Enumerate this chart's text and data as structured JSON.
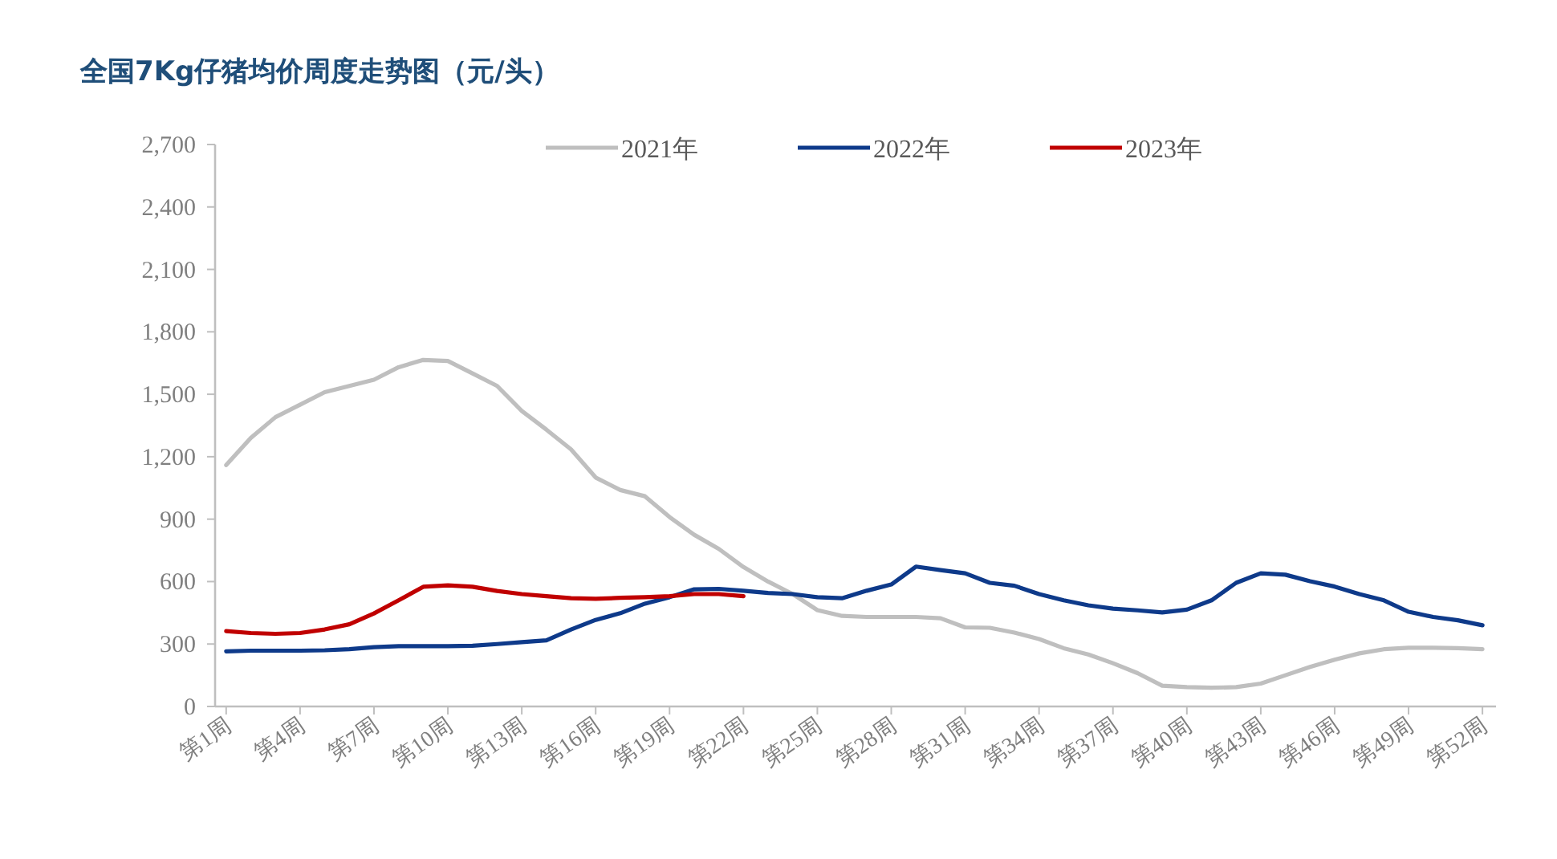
{
  "chart_data": {
    "type": "line",
    "title": "全国7Kg仔猪均价周度走势图（元/头）",
    "categories": [
      "第1周",
      null,
      null,
      "第4周",
      null,
      null,
      "第7周",
      null,
      null,
      "第10周",
      null,
      null,
      "第13周",
      null,
      null,
      "第16周",
      null,
      null,
      "第19周",
      null,
      null,
      "第22周",
      null,
      null,
      "第25周",
      null,
      null,
      "第28周",
      null,
      null,
      "第31周",
      null,
      null,
      "第34周",
      null,
      null,
      "第37周",
      null,
      null,
      "第40周",
      null,
      null,
      "第43周",
      null,
      null,
      "第46周",
      null,
      null,
      "第49周",
      null,
      null,
      "第52周"
    ],
    "series": [
      {
        "name": "2021年",
        "color": "#bfbfbf",
        "values": [
          1160,
          1290,
          1390,
          1450,
          1510,
          1540,
          1570,
          1630,
          1665,
          1660,
          1600,
          1540,
          1420,
          1330,
          1235,
          1100,
          1040,
          1010,
          910,
          825,
          757,
          670,
          600,
          540,
          463,
          435,
          430,
          430,
          430,
          424,
          380,
          378,
          355,
          324,
          280,
          250,
          208,
          160,
          100,
          93,
          90,
          93,
          110,
          150,
          190,
          225,
          255,
          275,
          282,
          282,
          280,
          275
        ]
      },
      {
        "name": "2022年",
        "color": "#0e3a8a",
        "values": [
          265,
          268,
          268,
          268,
          270,
          275,
          285,
          290,
          290,
          290,
          292,
          300,
          309,
          318,
          370,
          416,
          448,
          494,
          525,
          563,
          565,
          556,
          545,
          540,
          525,
          520,
          556,
          586,
          672,
          655,
          640,
          594,
          580,
          540,
          510,
          486,
          470,
          462,
          452,
          465,
          510,
          594,
          640,
          633,
          602,
          576,
          540,
          510,
          455,
          430,
          414,
          390
        ]
      },
      {
        "name": "2023年",
        "color": "#c00000",
        "values": [
          362,
          353,
          349,
          353,
          370,
          395,
          447,
          510,
          575,
          582,
          575,
          555,
          540,
          530,
          520,
          517,
          522,
          525,
          530,
          540,
          540,
          530,
          null,
          null,
          null,
          null,
          null,
          null,
          null,
          null,
          null,
          null,
          null,
          null,
          null,
          null,
          null,
          null,
          null,
          null,
          null,
          null,
          null,
          null,
          null,
          null,
          null,
          null,
          null,
          null,
          null,
          null
        ]
      }
    ],
    "ylim": [
      0,
      2700
    ],
    "yticks": [
      0,
      300,
      600,
      900,
      {
        "value": 1200,
        "label": "1,200"
      },
      {
        "value": 1500,
        "label": "1,500"
      },
      {
        "value": 1800,
        "label": "1,800"
      },
      {
        "value": 2100,
        "label": "2,100"
      },
      {
        "value": 2400,
        "label": "2,400"
      },
      {
        "value": 2700,
        "label": "2,700"
      }
    ],
    "legend": "top",
    "grid": false,
    "marker": "none",
    "line_style": "solid"
  }
}
